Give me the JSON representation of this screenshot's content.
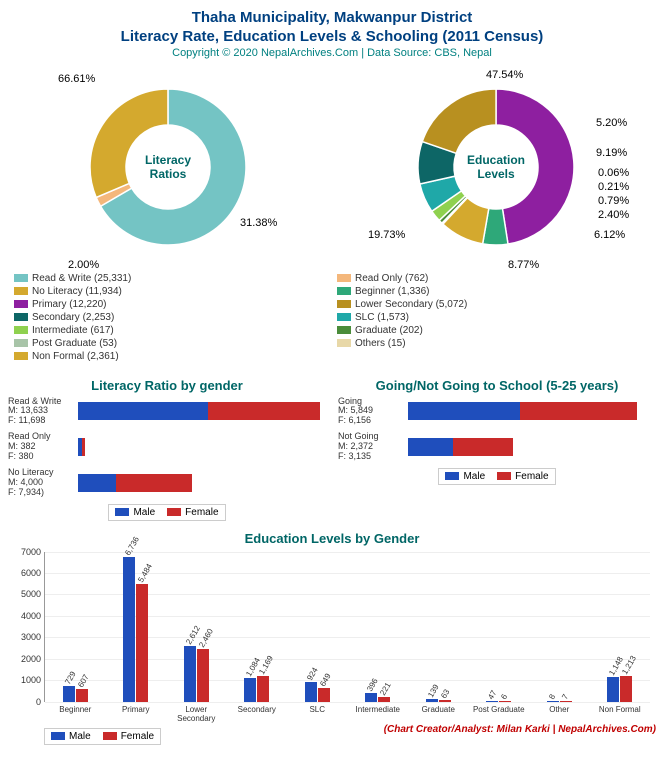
{
  "header": {
    "line1": "Thaha Municipality, Makwanpur District",
    "line2": "Literacy Rate, Education Levels & Schooling (2011 Census)",
    "copyright": "Copyright © 2020 NepalArchives.Com | Data Source: CBS, Nepal"
  },
  "colors": {
    "title": "#004080",
    "section_title": "#006666",
    "male": "#1f4ebc",
    "female": "#c92a2a",
    "credit": "#c00000"
  },
  "donut1": {
    "center_label": "Literacy\nRatios",
    "slices": [
      {
        "label": "Read & Write (25,331)",
        "pct": 66.61,
        "pct_text": "66.61%",
        "color": "#74c4c4"
      },
      {
        "label": "Read Only (762)",
        "pct": 2.0,
        "pct_text": "2.00%",
        "color": "#f4b77b"
      },
      {
        "label": "No Literacy (11,934)",
        "pct": 31.38,
        "pct_text": "31.38%",
        "color": "#d4a92e"
      }
    ]
  },
  "donut2": {
    "center_label": "Education\nLevels",
    "slices": [
      {
        "label": "Primary (12,220)",
        "pct": 47.54,
        "pct_text": "47.54%",
        "color": "#8e1fa0"
      },
      {
        "label": "Beginner (1,336)",
        "pct": 5.2,
        "pct_text": "5.20%",
        "color": "#2ea879"
      },
      {
        "label": "Non Formal (2,361)",
        "pct": 9.19,
        "pct_text": "9.19%",
        "color": "#d4a92e"
      },
      {
        "label": "Others (15)",
        "pct": 0.06,
        "pct_text": "0.06%",
        "color": "#e8d8a8"
      },
      {
        "label": "Post Graduate (53)",
        "pct": 0.21,
        "pct_text": "0.21%",
        "color": "#a8c4a8"
      },
      {
        "label": "Graduate (202)",
        "pct": 0.79,
        "pct_text": "0.79%",
        "color": "#4a8c3a"
      },
      {
        "label": "Intermediate (617)",
        "pct": 2.4,
        "pct_text": "2.40%",
        "color": "#8fd14f"
      },
      {
        "label": "SLC (1,573)",
        "pct": 6.12,
        "pct_text": "6.12%",
        "color": "#1fa8a8"
      },
      {
        "label": "Secondary (2,253)",
        "pct": 8.77,
        "pct_text": "8.77%",
        "color": "#0d6666"
      },
      {
        "label": "Lower Secondary (5,072)",
        "pct": 19.73,
        "pct_text": "19.73%",
        "color": "#b89020"
      }
    ]
  },
  "shared_legend": [
    {
      "color": "#74c4c4",
      "label": "Read & Write (25,331)"
    },
    {
      "color": "#f4b77b",
      "label": "Read Only (762)"
    },
    {
      "color": "#d4a92e",
      "label": "No Literacy (11,934)"
    },
    {
      "color": "#2ea879",
      "label": "Beginner (1,336)"
    },
    {
      "color": "#8e1fa0",
      "label": "Primary (12,220)"
    },
    {
      "color": "#b89020",
      "label": "Lower Secondary (5,072)"
    },
    {
      "color": "#0d6666",
      "label": "Secondary (2,253)"
    },
    {
      "color": "#1fa8a8",
      "label": "SLC (1,573)"
    },
    {
      "color": "#8fd14f",
      "label": "Intermediate (617)"
    },
    {
      "color": "#4a8c3a",
      "label": "Graduate (202)"
    },
    {
      "color": "#a8c4a8",
      "label": "Post Graduate (53)"
    },
    {
      "color": "#e8d8a8",
      "label": "Others (15)"
    },
    {
      "color": "#d4a92e",
      "label": "Non Formal (2,361)"
    }
  ],
  "hbar_literacy": {
    "title": "Literacy Ratio by gender",
    "max": 26000,
    "groups": [
      {
        "cat": "Read & Write",
        "m_label": "M: 13,633",
        "f_label": "F: 11,698",
        "m": 13633,
        "f": 11698
      },
      {
        "cat": "Read Only",
        "m_label": "M: 382",
        "f_label": "F: 380",
        "m": 382,
        "f": 380
      },
      {
        "cat": "No Literacy",
        "m_label": "M: 4,000",
        "f_label": "F: 7,934)",
        "m": 4000,
        "f": 7934
      }
    ]
  },
  "hbar_school": {
    "title": "Going/Not Going to School (5-25 years)",
    "max": 13000,
    "groups": [
      {
        "cat": "Going",
        "m_label": "M: 5,849",
        "f_label": "F: 6,156",
        "m": 5849,
        "f": 6156
      },
      {
        "cat": "Not Going",
        "m_label": "M: 2,372",
        "f_label": "F: 3,135",
        "m": 2372,
        "f": 3135
      }
    ]
  },
  "gender_legend": {
    "male": "Male",
    "female": "Female"
  },
  "vbar": {
    "title": "Education Levels by Gender",
    "ymax": 7000,
    "yticks": [
      0,
      1000,
      2000,
      3000,
      4000,
      5000,
      6000,
      7000
    ],
    "cats": [
      {
        "name": "Beginner",
        "m": 729,
        "f": 607,
        "m_text": "729",
        "f_text": "607"
      },
      {
        "name": "Primary",
        "m": 6736,
        "f": 5484,
        "m_text": "6,736",
        "f_text": "5,484"
      },
      {
        "name": "Lower Secondary",
        "m": 2612,
        "f": 2460,
        "m_text": "2,612",
        "f_text": "2,460"
      },
      {
        "name": "Secondary",
        "m": 1084,
        "f": 1169,
        "m_text": "1,084",
        "f_text": "1,169"
      },
      {
        "name": "SLC",
        "m": 924,
        "f": 649,
        "m_text": "924",
        "f_text": "649"
      },
      {
        "name": "Intermediate",
        "m": 396,
        "f": 221,
        "m_text": "396",
        "f_text": "221"
      },
      {
        "name": "Graduate",
        "m": 139,
        "f": 63,
        "m_text": "139",
        "f_text": "63"
      },
      {
        "name": "Post Graduate",
        "m": 47,
        "f": 6,
        "m_text": "47",
        "f_text": "6"
      },
      {
        "name": "Other",
        "m": 8,
        "f": 7,
        "m_text": "8",
        "f_text": "7"
      },
      {
        "name": "Non Formal",
        "m": 1148,
        "f": 1213,
        "m_text": "1,148",
        "f_text": "1,213"
      }
    ]
  },
  "credit": "(Chart Creator/Analyst: Milan Karki | NepalArchives.Com)"
}
